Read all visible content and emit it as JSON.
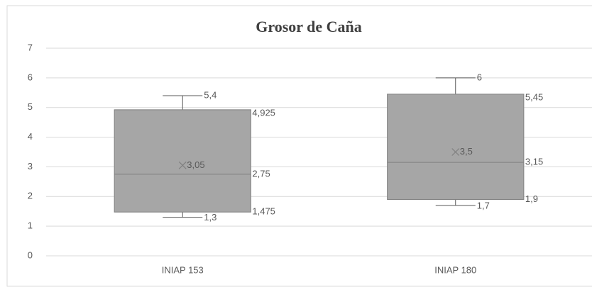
{
  "chart_data": {
    "type": "box",
    "title": "Grosor de Caña",
    "categories": [
      "INIAP 153",
      "INIAP 180"
    ],
    "boxes": [
      {
        "min": 1.3,
        "q1": 1.475,
        "median": 2.75,
        "q3": 4.925,
        "max": 5.4,
        "mean": 3.05,
        "value_labels": {
          "min": "1,3",
          "q1": "1,475",
          "median": "2,75",
          "q3": "4,925",
          "max": "5,4",
          "mean": "3,05"
        }
      },
      {
        "min": 1.7,
        "q1": 1.9,
        "median": 3.15,
        "q3": 5.45,
        "max": 6,
        "mean": 3.5,
        "value_labels": {
          "min": "1,7",
          "q1": "1,9",
          "median": "3,15",
          "q3": "5,45",
          "max": "6",
          "mean": "3,5"
        }
      }
    ],
    "color": "#a6a6a6",
    "ylim": [
      0,
      7
    ],
    "yticks": [
      0,
      1,
      2,
      3,
      4,
      5,
      6,
      7
    ],
    "grid": true
  }
}
